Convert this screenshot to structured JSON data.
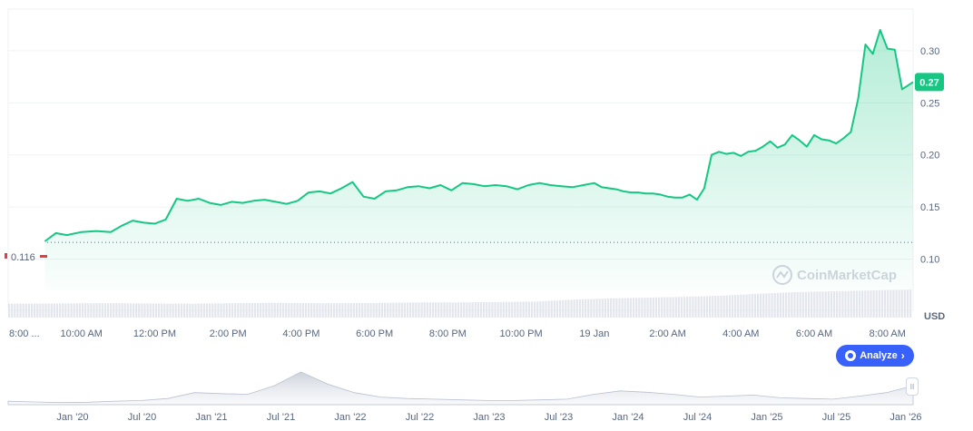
{
  "chart_data": {
    "type": "area",
    "currency_label": "USD",
    "current_price": {
      "value": 0.27,
      "label": "0.27"
    },
    "open_price": {
      "value": 0.116,
      "label": "0.116"
    },
    "y_ticks": [
      {
        "value": 0.1,
        "label": "0.10"
      },
      {
        "value": 0.15,
        "label": "0.15"
      },
      {
        "value": 0.2,
        "label": "0.20"
      },
      {
        "value": 0.25,
        "label": "0.25"
      },
      {
        "value": 0.3,
        "label": "0.30"
      }
    ],
    "ylim": [
      0.07,
      0.34
    ],
    "x_ticks": [
      "8:00 ...",
      "10:00 AM",
      "12:00 PM",
      "2:00 PM",
      "4:00 PM",
      "6:00 PM",
      "8:00 PM",
      "10:00 PM",
      "19 Jan",
      "2:00 AM",
      "4:00 AM",
      "6:00 AM",
      "8:00 AM"
    ],
    "x_range_hours": [
      0,
      24.7
    ],
    "x_tick_hours": [
      0,
      2,
      4,
      6,
      8,
      10,
      12,
      14,
      16,
      18,
      20,
      22,
      24
    ],
    "series": [
      {
        "x_hours": [
          1.0,
          1.3,
          1.6,
          2.0,
          2.4,
          2.8,
          3.1,
          3.4,
          3.7,
          4.0,
          4.3,
          4.6,
          4.9,
          5.2,
          5.5,
          5.8,
          6.1,
          6.4,
          6.7,
          7.0,
          7.3,
          7.6,
          7.9,
          8.2,
          8.5,
          8.8,
          9.1,
          9.4,
          9.7,
          10.0,
          10.3,
          10.6,
          10.9,
          11.2,
          11.5,
          11.8,
          12.1,
          12.4,
          12.7,
          13.0,
          13.3,
          13.6,
          13.9,
          14.2,
          14.5,
          14.8,
          15.1,
          15.4,
          15.7,
          16.0,
          16.2,
          16.4,
          16.6,
          16.8,
          17.0,
          17.2,
          17.4,
          17.6,
          17.8,
          18.0,
          18.2,
          18.4,
          18.6,
          18.8,
          19.0,
          19.2,
          19.4,
          19.6,
          19.8,
          20.0,
          20.2,
          20.4,
          20.6,
          20.8,
          21.0,
          21.2,
          21.4,
          21.6,
          21.8,
          22.0,
          22.2,
          22.4,
          22.6,
          22.8,
          23.0,
          23.2,
          23.4,
          23.6,
          23.8,
          24.0,
          24.2,
          24.4,
          24.7
        ],
        "y": [
          0.117,
          0.125,
          0.123,
          0.126,
          0.127,
          0.126,
          0.132,
          0.137,
          0.135,
          0.134,
          0.138,
          0.158,
          0.156,
          0.158,
          0.154,
          0.152,
          0.155,
          0.154,
          0.156,
          0.157,
          0.155,
          0.153,
          0.156,
          0.164,
          0.165,
          0.163,
          0.168,
          0.174,
          0.16,
          0.158,
          0.165,
          0.166,
          0.169,
          0.17,
          0.168,
          0.171,
          0.166,
          0.173,
          0.172,
          0.17,
          0.171,
          0.17,
          0.167,
          0.171,
          0.173,
          0.171,
          0.17,
          0.169,
          0.171,
          0.173,
          0.169,
          0.168,
          0.167,
          0.165,
          0.164,
          0.164,
          0.163,
          0.163,
          0.162,
          0.16,
          0.159,
          0.159,
          0.162,
          0.157,
          0.168,
          0.2,
          0.203,
          0.201,
          0.202,
          0.199,
          0.203,
          0.204,
          0.208,
          0.213,
          0.207,
          0.21,
          0.219,
          0.214,
          0.208,
          0.219,
          0.215,
          0.214,
          0.211,
          0.216,
          0.222,
          0.254,
          0.306,
          0.297,
          0.32,
          0.302,
          0.301,
          0.263,
          0.27
        ]
      }
    ],
    "volume_note": "volume bars",
    "volume_profile": [
      0.35,
      0.35,
      0.36,
      0.36,
      0.35,
      0.35,
      0.36,
      0.37,
      0.36,
      0.36,
      0.37,
      0.38,
      0.38,
      0.39,
      0.4,
      0.45,
      0.48,
      0.5,
      0.52,
      0.55,
      0.6,
      0.64,
      0.66,
      0.68,
      0.7
    ],
    "navigator": {
      "x_ticks": [
        "Jan '20",
        "Jul '20",
        "Jan '21",
        "Jul '21",
        "Jan '22",
        "Jul '22",
        "Jan '23",
        "Jul '23",
        "Jan '24",
        "Jul '24",
        "Jan '25",
        "Jul '25",
        "Jan '26"
      ],
      "history": [
        0.1,
        0.08,
        0.06,
        0.07,
        0.1,
        0.12,
        0.18,
        0.35,
        0.32,
        0.3,
        0.55,
        0.95,
        0.6,
        0.35,
        0.22,
        0.18,
        0.16,
        0.14,
        0.12,
        0.12,
        0.14,
        0.16,
        0.3,
        0.4,
        0.36,
        0.3,
        0.22,
        0.25,
        0.28,
        0.2,
        0.18,
        0.16,
        0.25,
        0.35,
        0.55
      ]
    }
  },
  "watermark": "CoinMarketCap",
  "analyze_button": {
    "label": "Analyze"
  }
}
